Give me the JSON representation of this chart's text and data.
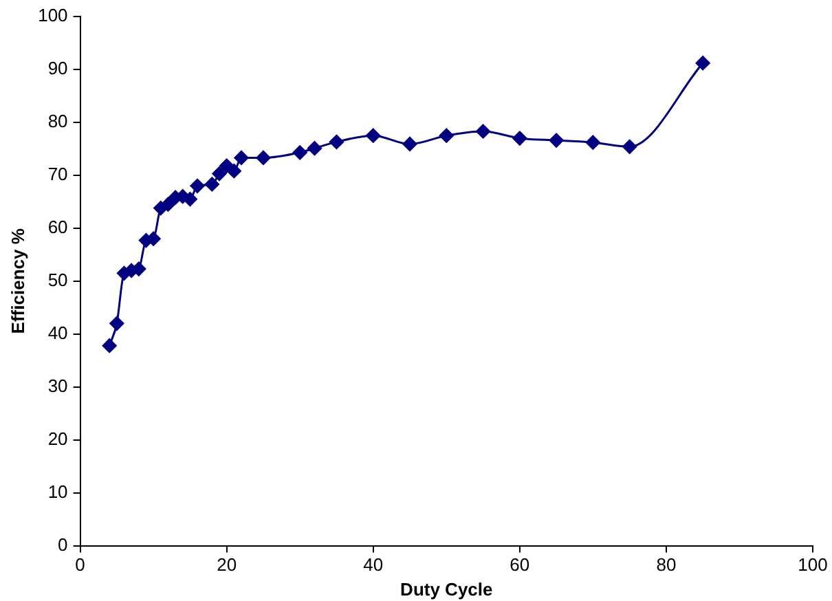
{
  "chart_data": {
    "type": "line",
    "xlabel": "Duty Cycle",
    "ylabel": "Efficiency %",
    "x": [
      4,
      5,
      6,
      7,
      8,
      9,
      10,
      11,
      12,
      13,
      14,
      15,
      16,
      18,
      19,
      20,
      21,
      22,
      25,
      30,
      32,
      35,
      40,
      45,
      50,
      55,
      60,
      65,
      70,
      75,
      85
    ],
    "series": [
      {
        "color": "#000080",
        "values": [
          37.8,
          42,
          51.5,
          52,
          52.3,
          57.7,
          58,
          63.8,
          64.5,
          65.8,
          66,
          65.5,
          68,
          68.3,
          70.3,
          71.8,
          70.8,
          73.3,
          73.3,
          74.3,
          75.1,
          76.3,
          77.5,
          75.9,
          77.5,
          78.3,
          77,
          76.6,
          76.2,
          75.4,
          91.2
        ]
      }
    ],
    "xlim": [
      0,
      100
    ],
    "xticks": [
      0,
      20,
      40,
      60,
      80,
      100
    ],
    "ylim": [
      0,
      100
    ],
    "yticks": [
      0,
      10,
      20,
      30,
      40,
      50,
      60,
      70,
      80,
      90,
      100
    ],
    "grid": false,
    "legend": false,
    "marker": "diamond",
    "line_style": "solid"
  }
}
